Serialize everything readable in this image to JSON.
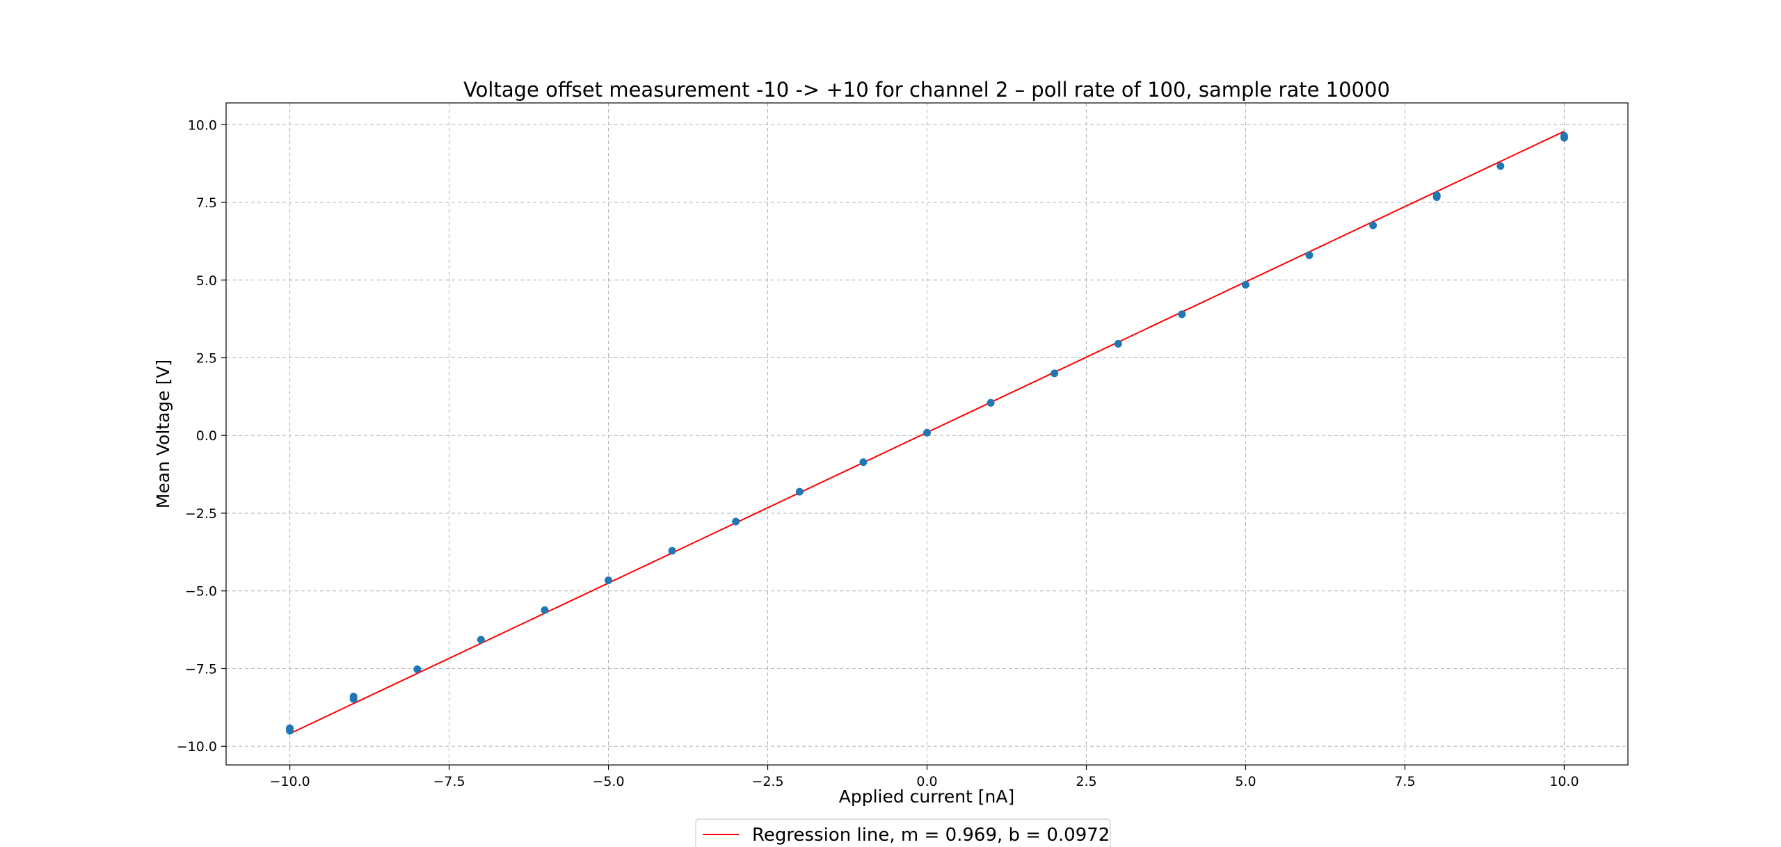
{
  "chart_data": {
    "type": "scatter",
    "title": "Voltage offset measurement -10 -> +10 for channel 2 – poll rate of 100, sample rate 10000",
    "xlabel": "Applied current [nA]",
    "ylabel": "Mean Voltage [V]",
    "xlim": [
      -11.0,
      11.0
    ],
    "ylim": [
      -10.6,
      10.7
    ],
    "xticks": [
      -10.0,
      -7.5,
      -5.0,
      -2.5,
      0.0,
      2.5,
      5.0,
      7.5,
      10.0
    ],
    "xtick_labels": [
      "−10.0",
      "−7.5",
      "−5.0",
      "−2.5",
      "0.0",
      "2.5",
      "5.0",
      "7.5",
      "10.0"
    ],
    "yticks": [
      10.0,
      7.5,
      5.0,
      2.5,
      0.0,
      -2.5,
      -5.0,
      -7.5,
      -10.0
    ],
    "ytick_labels": [
      "10.0",
      "7.5",
      "5.0",
      "2.5",
      "0.0",
      "−2.5",
      "−5.0",
      "−7.5",
      "−10.0"
    ],
    "grid": true,
    "legend_position": "bottom-center",
    "series": [
      {
        "type": "scatter",
        "color": "#1f77b4",
        "points": [
          [
            -10,
            -9.42
          ],
          [
            -10,
            -9.5
          ],
          [
            -9,
            -8.4
          ],
          [
            -9,
            -8.48
          ],
          [
            -8,
            -7.52
          ],
          [
            -7,
            -6.57
          ],
          [
            -6,
            -5.62
          ],
          [
            -5,
            -4.66
          ],
          [
            -4,
            -3.71
          ],
          [
            -3,
            -2.77
          ],
          [
            -2,
            -1.81
          ],
          [
            -1,
            -0.86
          ],
          [
            0,
            0.09
          ],
          [
            1,
            1.05
          ],
          [
            2,
            2.0
          ],
          [
            3,
            2.95
          ],
          [
            4,
            3.9
          ],
          [
            5,
            4.85
          ],
          [
            6,
            5.8
          ],
          [
            7,
            6.76
          ],
          [
            8,
            7.67
          ],
          [
            8,
            7.73
          ],
          [
            9,
            8.67
          ],
          [
            10,
            9.58
          ],
          [
            10,
            9.64
          ]
        ]
      },
      {
        "type": "line",
        "name": "Regression line, m = 0.969, b = 0.0972",
        "color": "#ff0000",
        "slope": 0.969,
        "intercept": 0.0972,
        "x_range": [
          -10,
          10
        ]
      }
    ]
  }
}
